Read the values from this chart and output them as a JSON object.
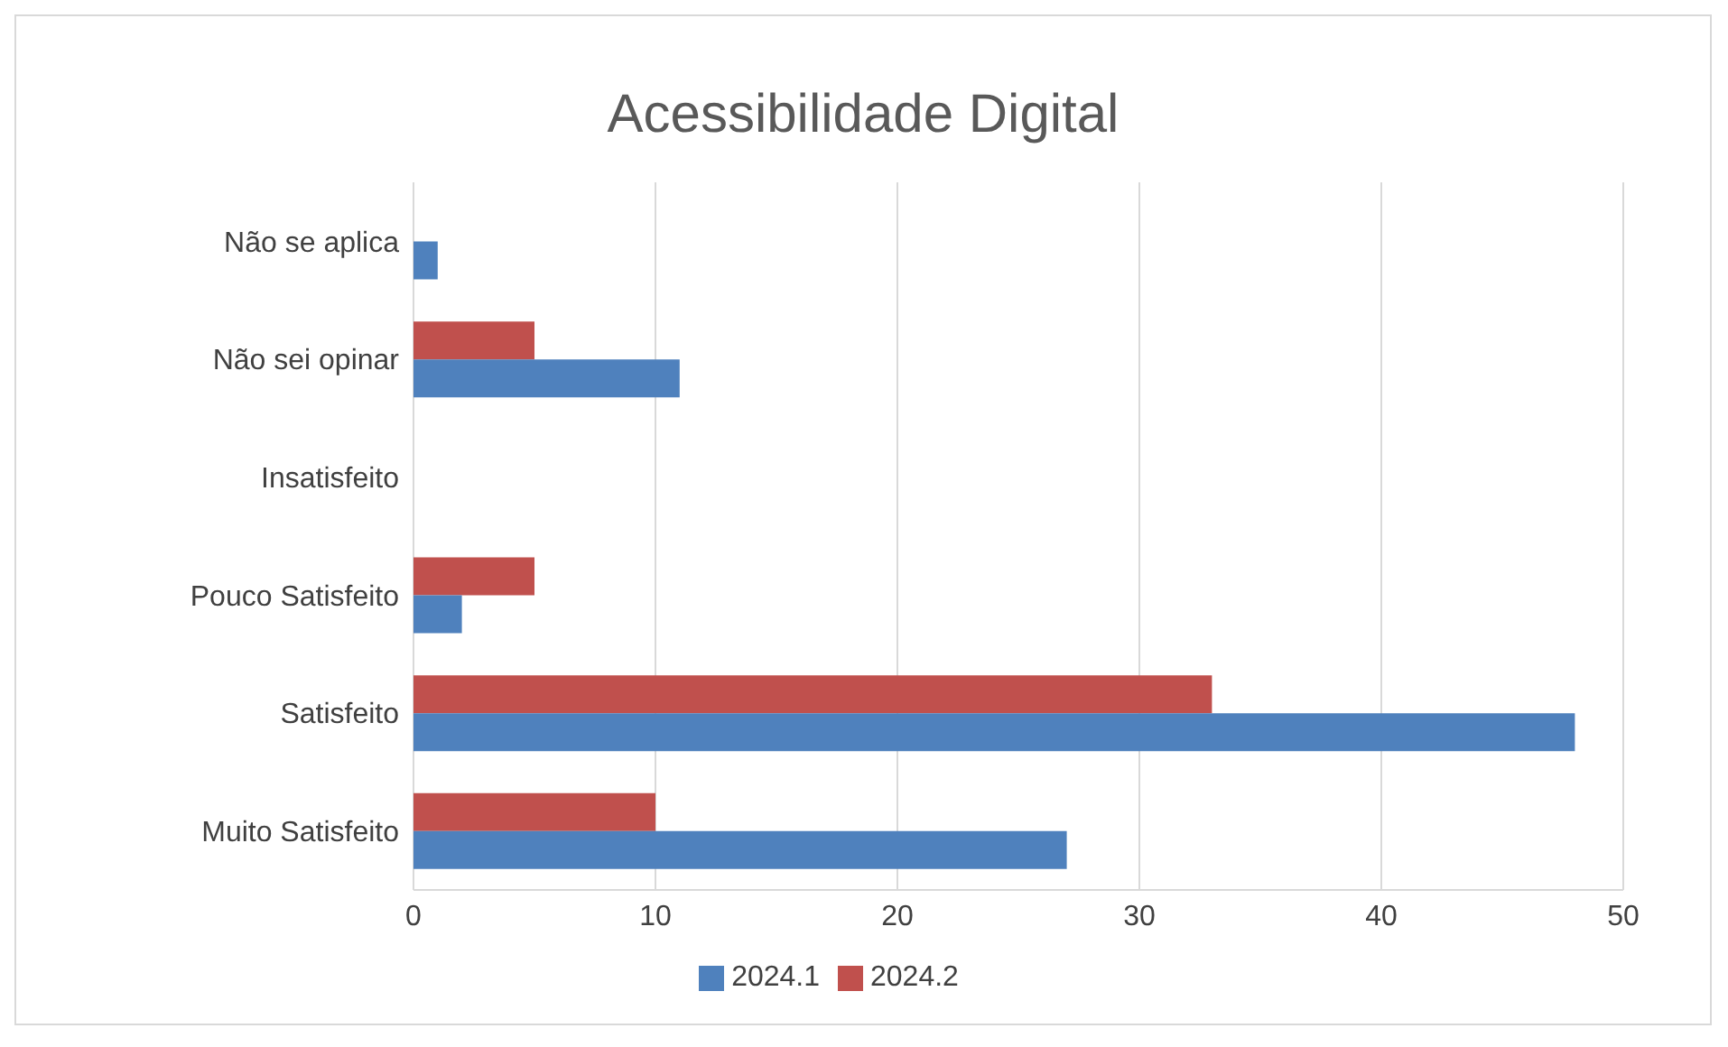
{
  "chart_data": {
    "type": "bar",
    "orientation": "horizontal",
    "title": "Acessibilidade Digital",
    "categories": [
      "Não se aplica",
      "Não sei opinar",
      "Insatisfeito",
      "Pouco Satisfeito",
      "Satisfeito",
      "Muito Satisfeito"
    ],
    "series": [
      {
        "name": "2024.2",
        "color": "#c0504d",
        "values": [
          0,
          5,
          0,
          5,
          33,
          10
        ]
      },
      {
        "name": "2024.1",
        "color": "#4f81bd",
        "values": [
          1,
          11,
          0,
          2,
          48,
          27
        ]
      }
    ],
    "xlim": [
      0,
      50
    ],
    "xticks": [
      0,
      10,
      20,
      30,
      40,
      50
    ],
    "grid": "x",
    "legend": "bottom"
  }
}
